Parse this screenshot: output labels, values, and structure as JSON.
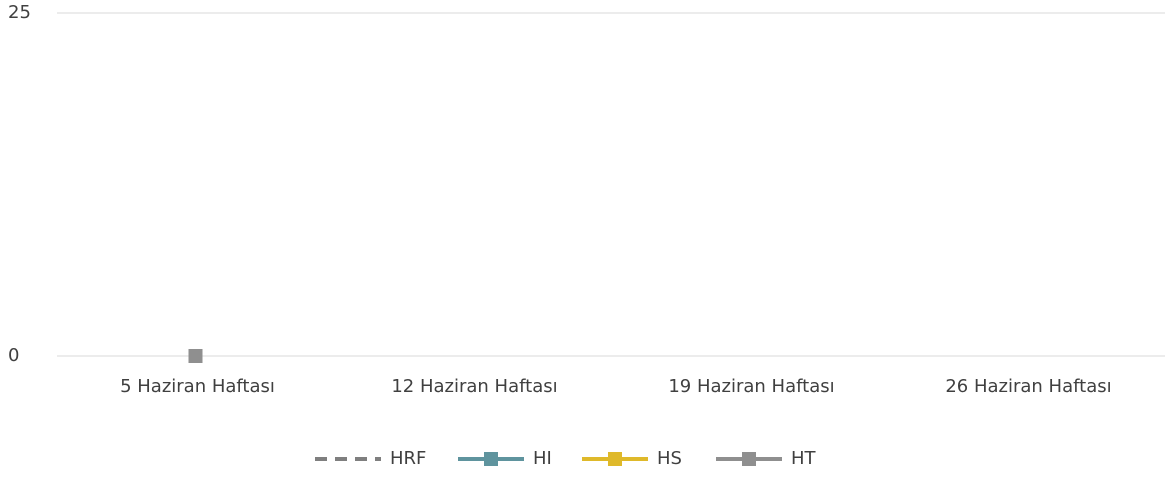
{
  "chart_data": {
    "type": "line",
    "categories": [
      "5 Haziran Haftası",
      "12 Haziran Haftası",
      "19 Haziran Haftası",
      "26 Haziran Haftası"
    ],
    "series": [
      {
        "name": "HRF",
        "color": "#7f7f7f",
        "dashed": true,
        "marker": false,
        "values": [
          null,
          null,
          null,
          null
        ]
      },
      {
        "name": "HI",
        "color": "#5f949e",
        "dashed": false,
        "marker": true,
        "values": [
          null,
          null,
          null,
          null
        ]
      },
      {
        "name": "HS",
        "color": "#dfb92a",
        "dashed": false,
        "marker": true,
        "values": [
          null,
          null,
          null,
          null
        ]
      },
      {
        "name": "HT",
        "color": "#8f8f8f",
        "dashed": false,
        "marker": true,
        "values": [
          0,
          null,
          null,
          null
        ]
      }
    ],
    "ylim": [
      0,
      25
    ],
    "yticks": [
      0,
      25
    ],
    "grid": true,
    "legend": "bottom"
  }
}
